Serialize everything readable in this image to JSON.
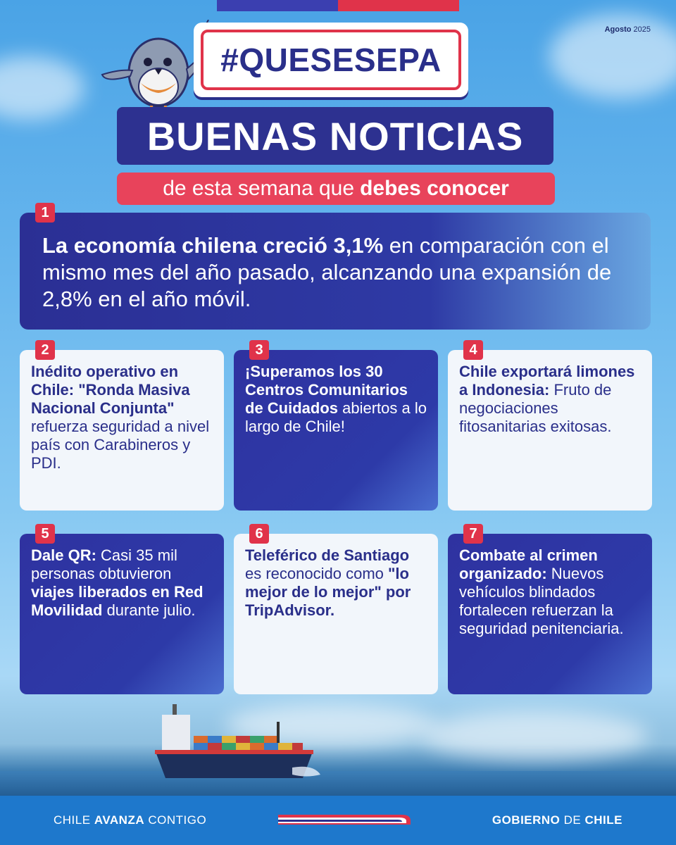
{
  "date": {
    "month": "Agosto",
    "year": "2025"
  },
  "hashtag": "#QUESESEPA",
  "title": "BUENAS NOTICIAS",
  "subtitle": {
    "normal": "de esta semana que",
    "bold": "debes conocer"
  },
  "main": {
    "number": "1",
    "bold": "La economía chilena creció 3,1%",
    "rest": " en comparación con el mismo mes del año pasado, alcanzando una expansión de 2,8% en el año móvil."
  },
  "cards": [
    {
      "number": "2",
      "style": "light",
      "parts": [
        {
          "b": true,
          "t": "Inédito operativo en Chile: \"Ronda Masiva Nacional Conjunta\""
        },
        {
          "b": false,
          "t": " refuerza seguridad a nivel país con Carabineros y PDI."
        }
      ]
    },
    {
      "number": "3",
      "style": "dark",
      "parts": [
        {
          "b": true,
          "t": "¡Superamos los 30 Centros Comunitarios de Cuidados"
        },
        {
          "b": false,
          "t": " abiertos a lo largo de Chile!"
        }
      ]
    },
    {
      "number": "4",
      "style": "light",
      "parts": [
        {
          "b": true,
          "t": "Chile exportará limones a Indonesia:"
        },
        {
          "b": false,
          "t": " Fruto de negociaciones fitosanitarias exitosas."
        }
      ]
    },
    {
      "number": "5",
      "style": "dark",
      "parts": [
        {
          "b": true,
          "t": "Dale QR:"
        },
        {
          "b": false,
          "t": " Casi 35 mil personas obtuvieron "
        },
        {
          "b": true,
          "t": "viajes liberados en Red Movilidad"
        },
        {
          "b": false,
          "t": " durante julio."
        }
      ]
    },
    {
      "number": "6",
      "style": "light",
      "parts": [
        {
          "b": true,
          "t": "Teleférico de Santiago"
        },
        {
          "b": false,
          "t": " es reconocido como "
        },
        {
          "b": true,
          "t": "\"lo mejor de lo mejor\" por TripAdvisor."
        }
      ]
    },
    {
      "number": "7",
      "style": "dark",
      "parts": [
        {
          "b": true,
          "t": "Combate al crimen organizado:"
        },
        {
          "b": false,
          "t": " Nuevos vehículos blindados fortalecen refuerzan la seguridad penitenciaria."
        }
      ]
    }
  ],
  "footer": {
    "left_normal1": "CHILE",
    "left_bold": "AVANZA",
    "left_normal2": "CONTIGO",
    "right_bold1": "GOBIERNO",
    "right_normal": "DE",
    "right_bold2": "CHILE"
  },
  "icons": {
    "mascot": "bird-mascot-icon",
    "ship": "cargo-ship-image"
  },
  "colors": {
    "navy": "#2d3190",
    "red": "#e0334a",
    "light": "#f2f6fb",
    "footer": "#1e78cc"
  }
}
